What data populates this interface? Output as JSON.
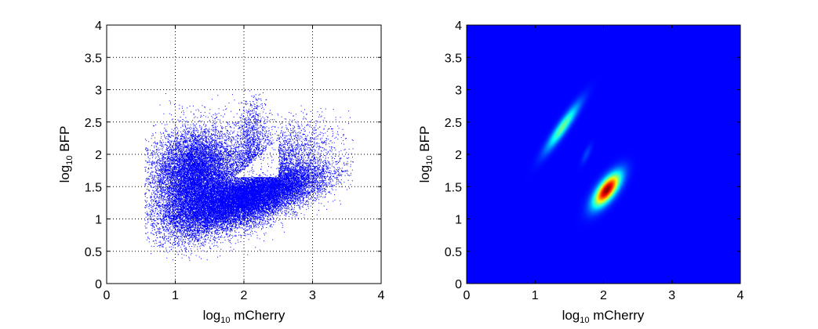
{
  "chart_data": [
    {
      "type": "scatter",
      "title": "",
      "xlabel_base": "log",
      "xlabel_sub": "10",
      "xlabel_rest": " mCherry",
      "ylabel_base": "log",
      "ylabel_sub": "10",
      "ylabel_rest": " BFP",
      "xlim": [
        0,
        4
      ],
      "ylim": [
        0,
        4
      ],
      "xticks": [
        "0",
        "1",
        "2",
        "3",
        "4"
      ],
      "yticks": [
        "0",
        "0.5",
        "1",
        "1.5",
        "2",
        "2.5",
        "3",
        "3.5",
        "4"
      ],
      "grid": true,
      "point_color": "#0000ff",
      "populations": [
        {
          "center": [
            1.3,
            1.75
          ],
          "spread": [
            0.32,
            0.33
          ],
          "rho": 0.1,
          "count": 9000
        },
        {
          "center": [
            1.95,
            1.3
          ],
          "spread": [
            0.45,
            0.25
          ],
          "rho": 0.55,
          "count": 10000
        },
        {
          "center": [
            2.4,
            1.45
          ],
          "spread": [
            0.45,
            0.22
          ],
          "rho": 0.6,
          "count": 6000
        },
        {
          "center": [
            1.25,
            1.2
          ],
          "spread": [
            0.3,
            0.3
          ],
          "rho": 0.2,
          "count": 3500
        },
        {
          "center": [
            2.1,
            2.0
          ],
          "spread": [
            0.12,
            0.45
          ],
          "rho": 0.1,
          "count": 1500
        },
        {
          "center": [
            2.6,
            2.05
          ],
          "spread": [
            0.35,
            0.25
          ],
          "rho": 0.4,
          "count": 1500
        }
      ]
    },
    {
      "type": "heatmap",
      "title": "",
      "xlabel_base": "log",
      "xlabel_sub": "10",
      "xlabel_rest": " mCherry",
      "ylabel_base": "log",
      "ylabel_sub": "10",
      "ylabel_rest": " BFP",
      "xlim": [
        0,
        4
      ],
      "ylim": [
        0,
        4
      ],
      "xticks": [
        "0",
        "1",
        "2",
        "3",
        "4"
      ],
      "yticks": [
        "0",
        "0.5",
        "1",
        "1.5",
        "2",
        "2.5",
        "3",
        "3.5",
        "4"
      ],
      "grid": false,
      "colormap": "jet",
      "peaks": [
        {
          "center": [
            2.05,
            1.45
          ],
          "sigma": [
            0.13,
            0.17
          ],
          "rho": 0.7,
          "amplitude": 1.0
        },
        {
          "center": [
            1.4,
            2.42
          ],
          "sigma": [
            0.16,
            0.24
          ],
          "rho": 0.93,
          "amplitude": 0.42
        },
        {
          "center": [
            1.75,
            2.0
          ],
          "sigma": [
            0.05,
            0.1
          ],
          "rho": 0.8,
          "amplitude": 0.08
        }
      ]
    }
  ]
}
